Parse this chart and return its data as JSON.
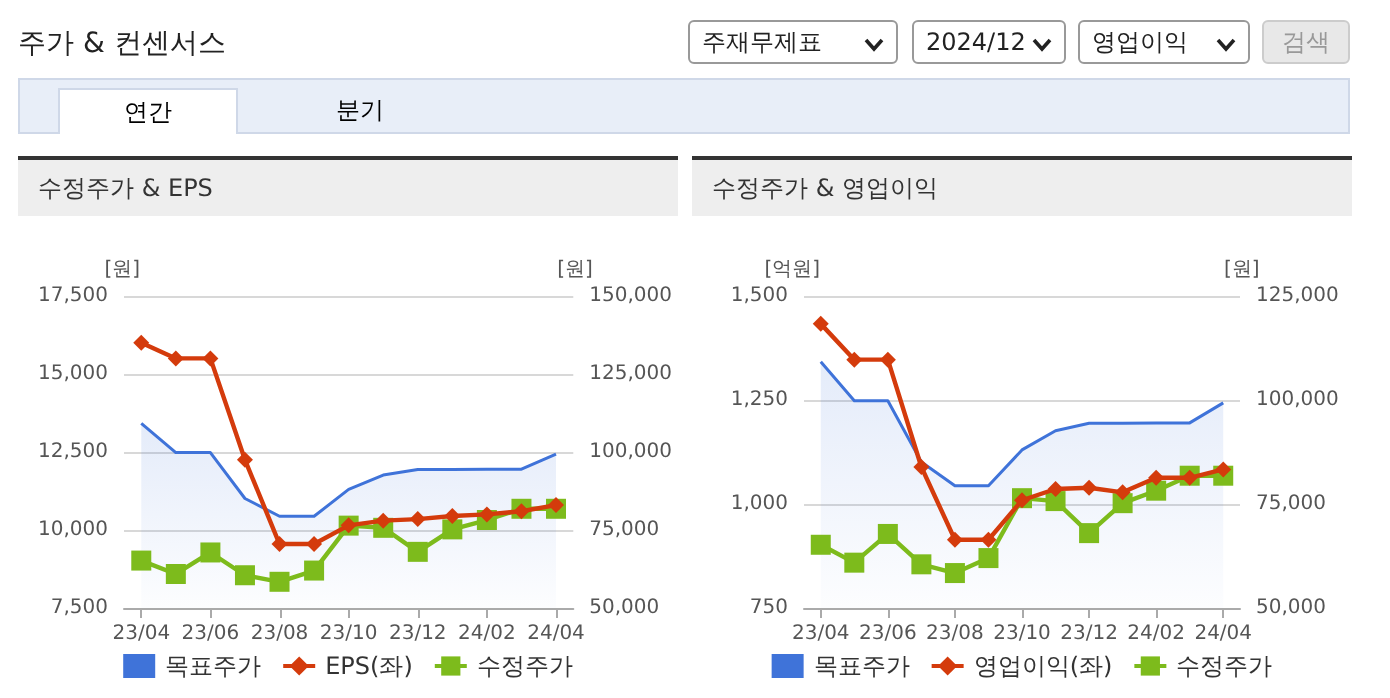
{
  "chart_data": [
    {
      "type": "other",
      "title": "주가 & 컨센서스",
      "annotations": [
        "주재무제표",
        "2024/12",
        "영업이익",
        "검색",
        "연간",
        "분기"
      ]
    },
    {
      "type": "line",
      "title": "수정주가 & EPS",
      "ylabel": "[원]",
      "y2label": "[원]",
      "categories": [
        "23/04",
        null,
        "23/06",
        null,
        "23/08",
        null,
        "23/10",
        null,
        "23/12",
        null,
        "24/02",
        null,
        "24/04"
      ],
      "series": [
        {
          "name": "목표주가",
          "type": "area",
          "axis": "y2",
          "color": "#3f73d9",
          "marker": "none",
          "values": [
            109200,
            99800,
            99800,
            85100,
            79400,
            79400,
            88000,
            92600,
            94400,
            94400,
            94500,
            94500,
            99300
          ]
        },
        {
          "name": "EPS(좌)",
          "type": "line",
          "axis": "y",
          "color": "#d43b0c",
          "marker": "diamond",
          "values": [
            16000,
            15500,
            15500,
            12250,
            9550,
            9550,
            10150,
            10300,
            10350,
            10450,
            10500,
            10600,
            10800
          ]
        },
        {
          "name": "수정주가",
          "type": "line",
          "axis": "y2",
          "color": "#7dbb1c",
          "marker": "square",
          "values": [
            65200,
            60900,
            67800,
            60500,
            58400,
            62000,
            76400,
            75700,
            68000,
            75200,
            78200,
            81800,
            81800
          ]
        }
      ],
      "ylim": [
        7500,
        17500
      ],
      "yticks": [
        {
          "value": 7500,
          "label": "7,500"
        },
        {
          "value": 10000,
          "label": "10,000"
        },
        {
          "value": 12500,
          "label": "12,500"
        },
        {
          "value": 15000,
          "label": "15,000"
        },
        {
          "value": 17500,
          "label": "17,500"
        }
      ],
      "y2lim": [
        50000,
        150000
      ],
      "y2ticks": [
        {
          "value": 50000,
          "label": "50,000"
        },
        {
          "value": 75000,
          "label": "75,000"
        },
        {
          "value": 100000,
          "label": "100,000"
        },
        {
          "value": 125000,
          "label": "125,000"
        },
        {
          "value": 150000,
          "label": "150,000"
        }
      ],
      "grid": "y",
      "legend": "bottom"
    },
    {
      "type": "line",
      "title": "수정주가 & 영업이익",
      "ylabel": "[억원]",
      "y2label": "[원]",
      "categories": [
        "23/04",
        null,
        "23/06",
        null,
        "23/08",
        null,
        "23/10",
        null,
        "23/12",
        null,
        "24/02",
        null,
        "24/04"
      ],
      "series": [
        {
          "name": "목표주가",
          "type": "area",
          "axis": "y2",
          "color": "#3f73d9",
          "marker": "none",
          "values": [
            109200,
            99800,
            99800,
            85100,
            79400,
            79400,
            88000,
            92600,
            94400,
            94400,
            94500,
            94500,
            99300
          ]
        },
        {
          "name": "영업이익(좌)",
          "type": "line",
          "axis": "y",
          "color": "#d43b0c",
          "marker": "diamond",
          "values": [
            1433,
            1347,
            1347,
            1089,
            914,
            914,
            1009,
            1036,
            1039,
            1028,
            1063,
            1063,
            1083
          ]
        },
        {
          "name": "수정주가",
          "type": "line",
          "axis": "y2",
          "color": "#7dbb1c",
          "marker": "square",
          "values": [
            65200,
            60900,
            67800,
            60500,
            58400,
            62000,
            76400,
            75700,
            68000,
            75200,
            78200,
            81800,
            81800
          ]
        }
      ],
      "ylim": [
        750,
        1500
      ],
      "yticks": [
        {
          "value": 750,
          "label": "750"
        },
        {
          "value": 1000,
          "label": "1,000"
        },
        {
          "value": 1250,
          "label": "1,250"
        },
        {
          "value": 1500,
          "label": "1,500"
        }
      ],
      "y2lim": [
        50000,
        125000
      ],
      "y2ticks": [
        {
          "value": 50000,
          "label": "50,000"
        },
        {
          "value": 75000,
          "label": "75,000"
        },
        {
          "value": 100000,
          "label": "100,000"
        },
        {
          "value": 125000,
          "label": "125,000"
        }
      ],
      "grid": "y",
      "legend": "bottom"
    }
  ]
}
